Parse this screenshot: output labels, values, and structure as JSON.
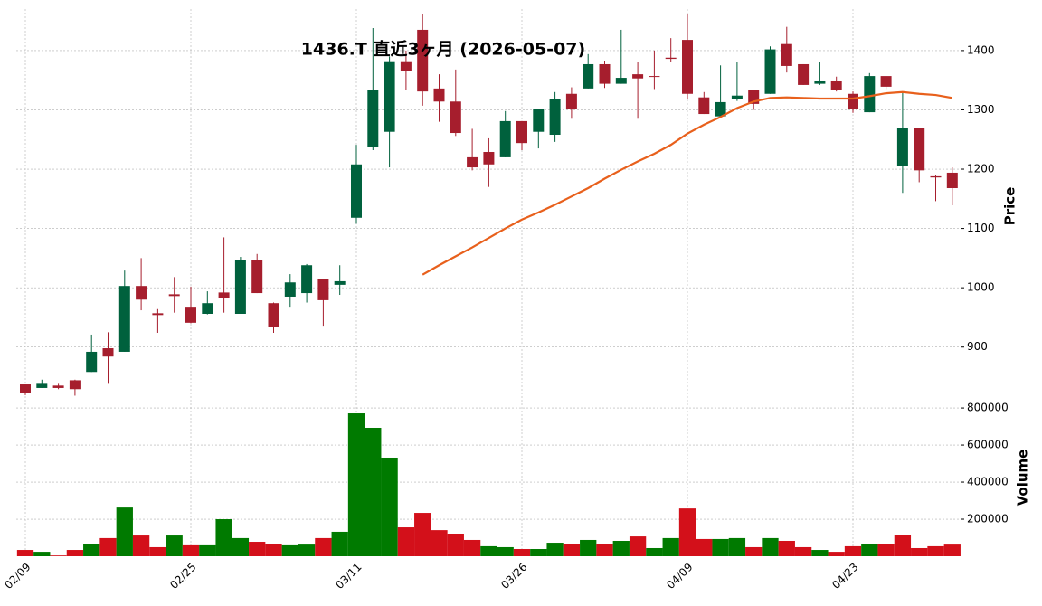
{
  "chart_data": {
    "type": "candlestick",
    "title": "1436.T 直近3ヶ月 (2026-05-07)",
    "categories": [
      "02/09",
      null,
      null,
      null,
      null,
      null,
      null,
      null,
      null,
      null,
      "02/25",
      null,
      null,
      null,
      null,
      null,
      null,
      null,
      null,
      null,
      "03/11",
      null,
      null,
      null,
      null,
      null,
      null,
      null,
      null,
      null,
      "03/26",
      null,
      null,
      null,
      null,
      null,
      null,
      null,
      null,
      null,
      "04/09",
      null,
      null,
      null,
      null,
      null,
      null,
      null,
      null,
      null,
      "04/23",
      null,
      null,
      null,
      null,
      null,
      null
    ],
    "open": [
      837,
      831,
      835,
      844,
      858,
      898,
      892,
      1003,
      957,
      989,
      968,
      956,
      992,
      956,
      1047,
      974,
      985,
      991,
      1015,
      1005,
      1118,
      1237,
      1263,
      1382,
      1435,
      1336,
      1314,
      1220,
      1229,
      1220,
      1281,
      1263,
      1258,
      1327,
      1336,
      1377,
      1344,
      1360,
      1357,
      1388,
      1418,
      1321,
      1289,
      1319,
      1334,
      1327,
      1411,
      1377,
      1344,
      1348,
      1327,
      1296,
      1357,
      1205,
      1270,
      1188,
      1194
    ],
    "high": [
      837,
      845,
      838,
      845,
      921,
      925,
      1029,
      1050,
      964,
      1018,
      1002,
      994,
      1085,
      1052,
      1057,
      975,
      1023,
      1040,
      1015,
      1038,
      1241,
      1438,
      1390,
      1400,
      1462,
      1360,
      1368,
      1268,
      1252,
      1298,
      1281,
      1302,
      1330,
      1338,
      1394,
      1383,
      1435,
      1380,
      1400,
      1421,
      1462,
      1330,
      1375,
      1380,
      1334,
      1407,
      1440,
      1377,
      1380,
      1356,
      1331,
      1362,
      1357,
      1330,
      1270,
      1190,
      1203
    ],
    "low": [
      819,
      831,
      829,
      818,
      858,
      838,
      892,
      962,
      924,
      958,
      940,
      955,
      958,
      956,
      991,
      924,
      968,
      975,
      936,
      988,
      1108,
      1232,
      1203,
      1333,
      1307,
      1280,
      1256,
      1198,
      1170,
      1220,
      1232,
      1235,
      1246,
      1285,
      1336,
      1337,
      1344,
      1285,
      1335,
      1380,
      1318,
      1293,
      1289,
      1315,
      1300,
      1327,
      1363,
      1342,
      1342,
      1331,
      1295,
      1296,
      1335,
      1160,
      1178,
      1146,
      1139
    ],
    "close": [
      822,
      838,
      831,
      829,
      892,
      884,
      1003,
      980,
      954,
      986,
      941,
      974,
      982,
      1047,
      991,
      934,
      1009,
      1038,
      979,
      1011,
      1208,
      1334,
      1382,
      1366,
      1331,
      1314,
      1261,
      1203,
      1208,
      1281,
      1244,
      1302,
      1319,
      1301,
      1377,
      1344,
      1354,
      1353,
      1356,
      1386,
      1327,
      1293,
      1313,
      1324,
      1310,
      1402,
      1374,
      1342,
      1348,
      1334,
      1301,
      1357,
      1339,
      1270,
      1198,
      1186,
      1168
    ],
    "up_color": "#00613d",
    "down_color": "#a61e2d",
    "ylabel": "Price",
    "ylim": [
      805,
      1470
    ],
    "yticks": [
      900,
      1000,
      1100,
      1200,
      1300,
      1400
    ],
    "grid": true,
    "moving_average": {
      "color": "#e8601c",
      "values": [
        null,
        null,
        null,
        null,
        null,
        null,
        null,
        null,
        null,
        null,
        null,
        null,
        null,
        null,
        null,
        null,
        null,
        null,
        null,
        null,
        null,
        null,
        null,
        null,
        1022,
        1038,
        1053,
        1068,
        1084,
        1100,
        1115,
        1127,
        1140,
        1154,
        1168,
        1184,
        1199,
        1213,
        1226,
        1241,
        1260,
        1275,
        1288,
        1303,
        1314,
        1320,
        1321,
        1320,
        1319,
        1319,
        1319,
        1323,
        1328,
        1330,
        1327,
        1325,
        1320
      ]
    },
    "volume": {
      "ylabel": "Volume",
      "ylim": [
        0,
        815000
      ],
      "yticks": [
        200000,
        400000,
        600000,
        800000
      ],
      "up_color": "#007a00",
      "down_color": "#d3101a",
      "values": [
        34000,
        24000,
        4000,
        34000,
        68000,
        98000,
        263000,
        112000,
        49000,
        112000,
        59000,
        59000,
        200000,
        98000,
        78000,
        68000,
        59000,
        63000,
        98000,
        132000,
        771000,
        693000,
        532000,
        156000,
        234000,
        141000,
        122000,
        88000,
        54000,
        49000,
        39000,
        39000,
        73000,
        68000,
        88000,
        68000,
        83000,
        107000,
        44000,
        98000,
        258000,
        93000,
        93000,
        98000,
        49000,
        98000,
        83000,
        49000,
        34000,
        24000,
        54000,
        68000,
        68000,
        117000,
        44000,
        54000,
        63000
      ]
    }
  }
}
